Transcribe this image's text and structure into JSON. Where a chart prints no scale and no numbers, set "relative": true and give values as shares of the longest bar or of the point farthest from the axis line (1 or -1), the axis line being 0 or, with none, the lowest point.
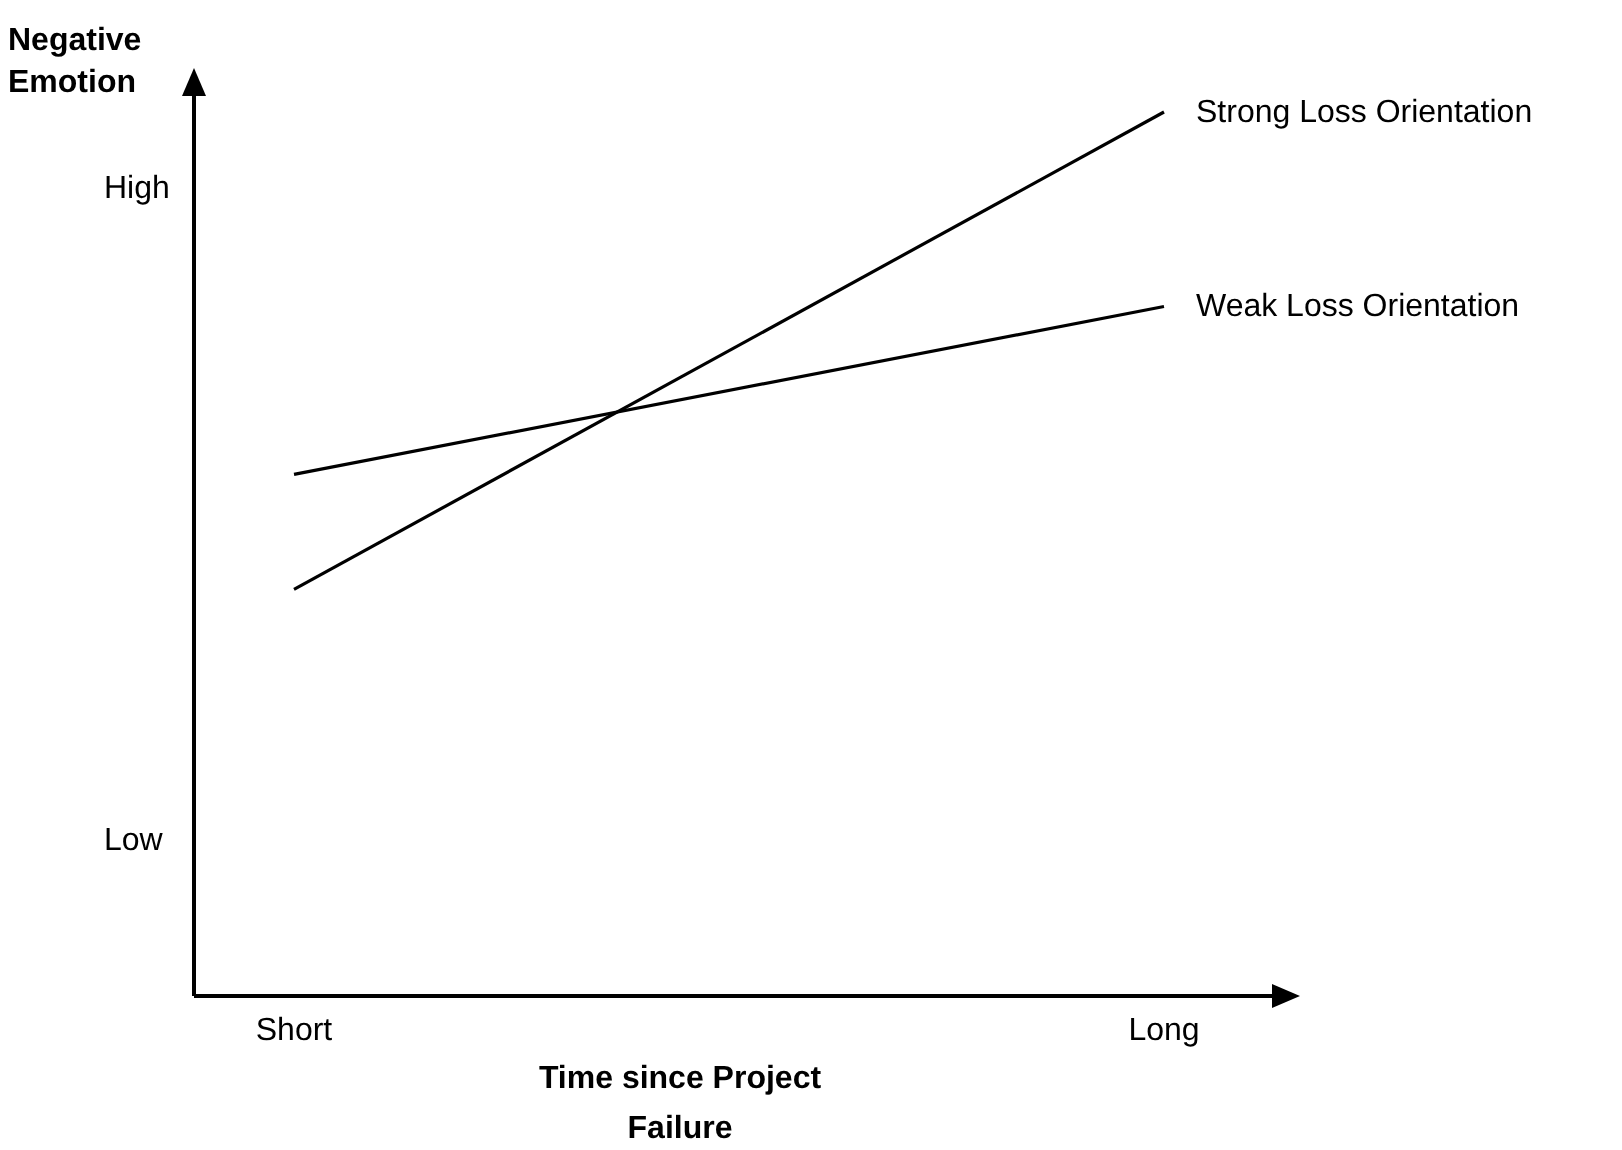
{
  "chart_data": {
    "type": "line",
    "relative": true,
    "xlabel": "Time since Project Failure",
    "ylabel": "Negative Emotion",
    "categories": [
      "Short",
      "Long"
    ],
    "annotations": [
      "High",
      "Low"
    ],
    "series": [
      {
        "name": "Strong Loss Orientation",
        "color": "#000000",
        "values": [
          0.46,
          1
        ]
      },
      {
        "name": "Weak Loss Orientation",
        "color": "#000000",
        "values": [
          0.59,
          0.78
        ]
      }
    ]
  }
}
